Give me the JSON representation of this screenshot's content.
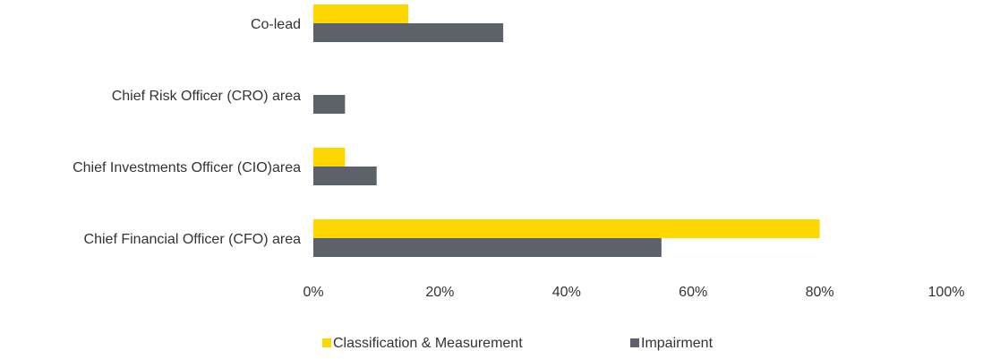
{
  "chart_data": {
    "type": "bar",
    "orientation": "horizontal",
    "categories": [
      "Co-lead",
      "Chief Risk Officer (CRO) area",
      "Chief Investments Officer (CIO)area",
      "Chief Financial Officer (CFO) area"
    ],
    "series": [
      {
        "name": "Classification & Measurement",
        "color": "#FFD700",
        "values": [
          15,
          0,
          5,
          80
        ]
      },
      {
        "name": "Impairment",
        "color": "#5C616B",
        "values": [
          30,
          5,
          10,
          55
        ]
      }
    ],
    "xlim": [
      0,
      100
    ],
    "xticks": [
      0,
      20,
      40,
      60,
      80,
      100
    ],
    "tick_format": "%",
    "title": "",
    "xlabel": "",
    "ylabel": "",
    "grid": false,
    "legend_position": "bottom"
  }
}
